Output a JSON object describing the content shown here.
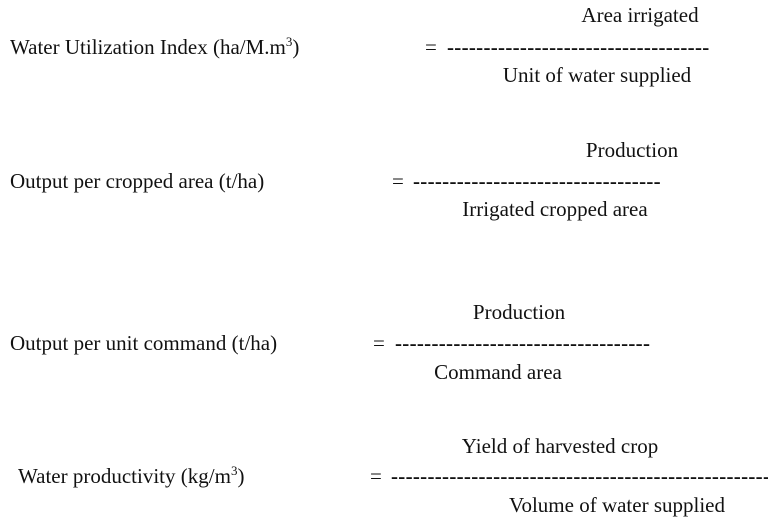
{
  "formulas": [
    {
      "label": "Water Utilization Index (ha/M.m",
      "label_sup": "3",
      "label_end": ")",
      "equals": "=",
      "numerator": "Area irrigated",
      "bar": "------------------------------------",
      "denominator": "Unit of water supplied"
    },
    {
      "label": "Output per cropped area (t/ha)",
      "equals": "=",
      "numerator": "Production",
      "bar": "----------------------------------",
      "denominator": "Irrigated cropped area"
    },
    {
      "label": "Output per unit command (t/ha)",
      "equals": "=",
      "numerator": "Production",
      "bar": "-----------------------------------",
      "denominator": "Command area"
    },
    {
      "label": "Water productivity (kg/m",
      "label_sup": "3",
      "label_end": ")",
      "equals": "=",
      "numerator": "Yield of harvested crop",
      "bar": "----------------------------------------------------",
      "denominator": "Volume of water supplied"
    }
  ]
}
